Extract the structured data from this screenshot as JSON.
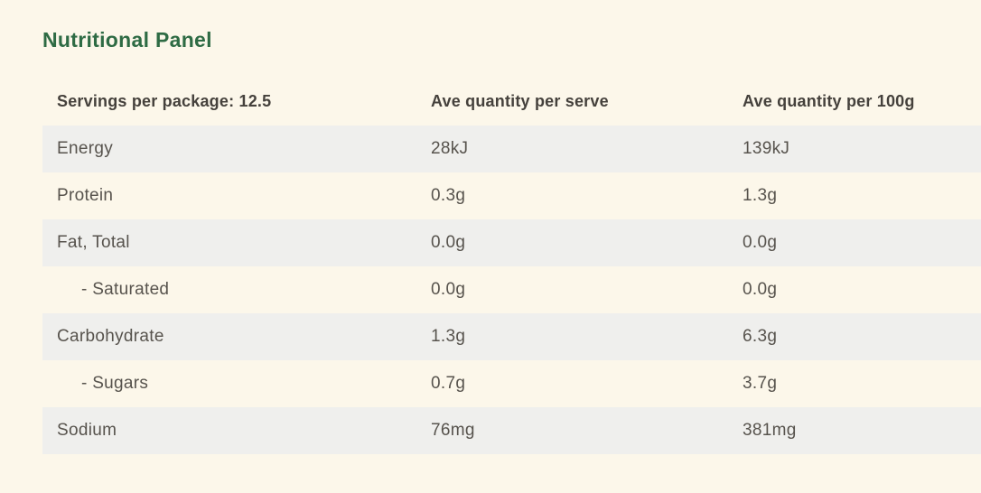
{
  "page": {
    "title": "Nutritional Panel"
  },
  "colors": {
    "page_background": "#FCF7EA",
    "shaded_row": "#EFEFED",
    "title_green": "#2E6B44",
    "header_text": "#45413C",
    "cell_text": "#57534D"
  },
  "table": {
    "headers": {
      "servings": "Servings per package: 12.5",
      "per_serve": "Ave quantity per serve",
      "per_100g": "Ave quantity per 100g"
    },
    "rows": [
      {
        "label": "Energy",
        "per_serve": "28kJ",
        "per_100g": "139kJ"
      },
      {
        "label": "Protein",
        "per_serve": "0.3g",
        "per_100g": "1.3g"
      },
      {
        "label": "Fat, Total",
        "per_serve": "0.0g",
        "per_100g": "0.0g"
      },
      {
        "label": "- Saturated",
        "per_serve": "0.0g",
        "per_100g": "0.0g"
      },
      {
        "label": "Carbohydrate",
        "per_serve": "1.3g",
        "per_100g": "6.3g"
      },
      {
        "label": "- Sugars",
        "per_serve": "0.7g",
        "per_100g": "3.7g"
      },
      {
        "label": "Sodium",
        "per_serve": "76mg",
        "per_100g": "381mg"
      }
    ]
  }
}
